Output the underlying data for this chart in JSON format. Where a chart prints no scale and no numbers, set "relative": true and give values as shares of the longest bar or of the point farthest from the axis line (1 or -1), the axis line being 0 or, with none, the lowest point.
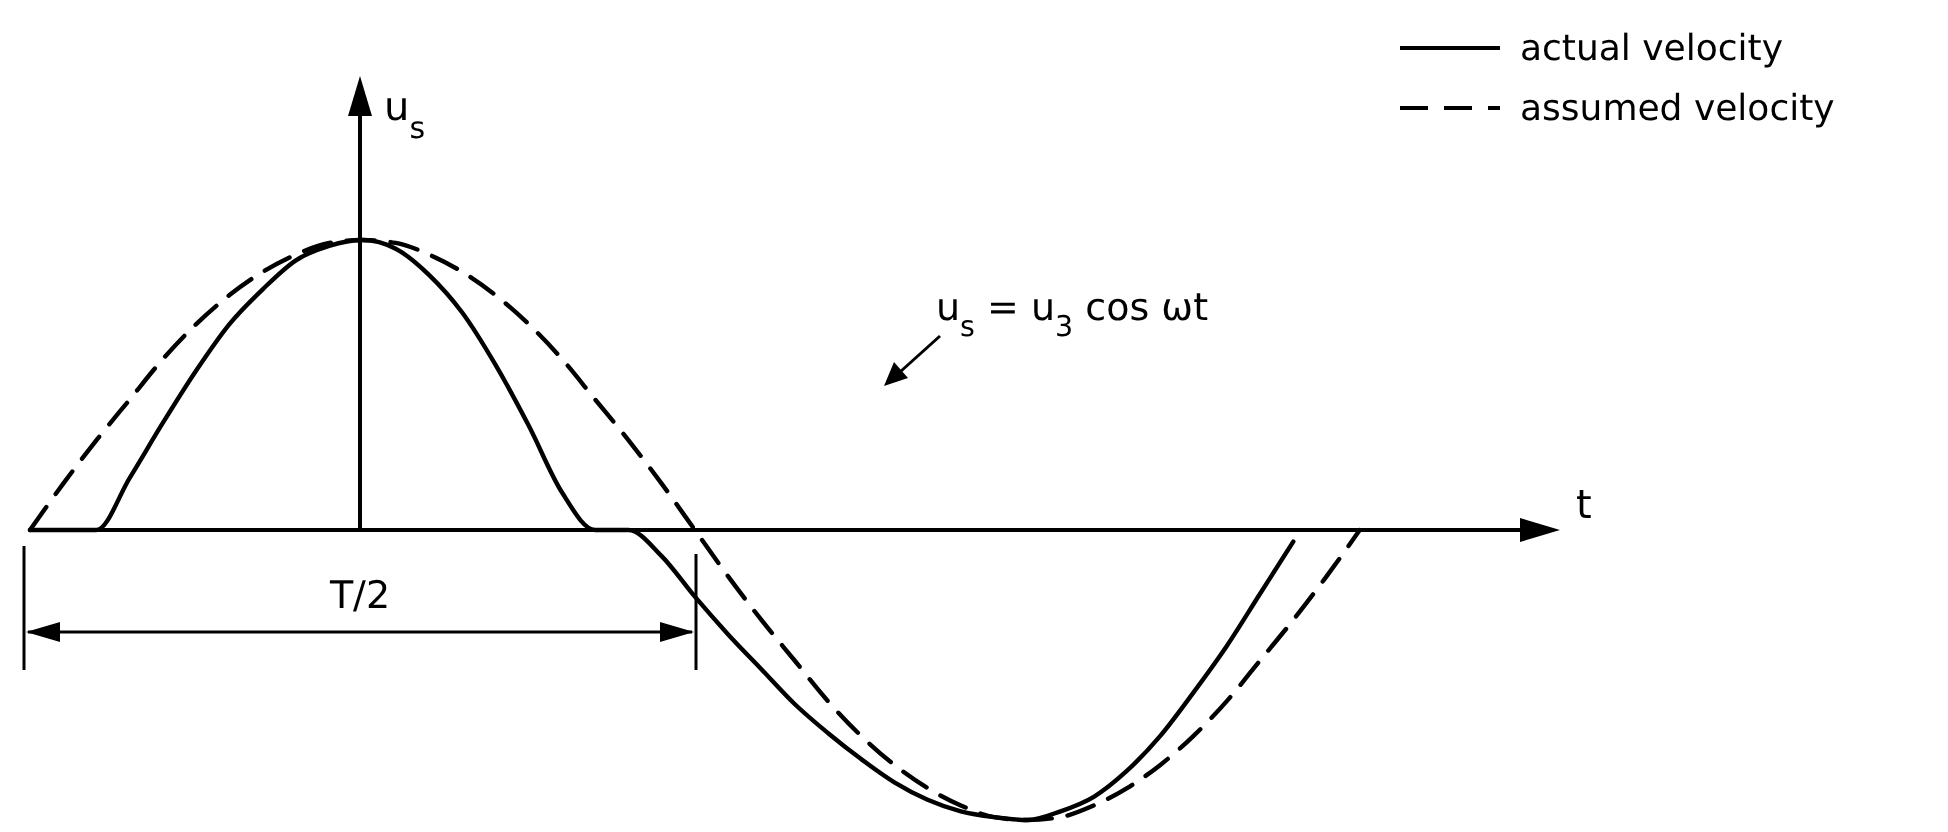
{
  "chart_data": {
    "type": "line",
    "relative": true,
    "xlabel": "t",
    "ylabel": "u$_{s}$",
    "legend": "top right",
    "categories": [
      null,
      null,
      null,
      null,
      null,
      null,
      null,
      null,
      null,
      null,
      null,
      null,
      null,
      null,
      null,
      null,
      null,
      null,
      null,
      null,
      null,
      null,
      null,
      null,
      null,
      null,
      null,
      null,
      null,
      null,
      null,
      null,
      null,
      null,
      null,
      null,
      null,
      null,
      null,
      null,
      null,
      null,
      null,
      null,
      null,
      null
    ],
    "series": [
      {
        "name": "actual velocity",
        "color": "#000000",
        "line_style": "solid",
        "values": [
          0,
          0,
          0,
          0.18,
          0.37,
          0.55,
          0.71,
          0.83,
          0.93,
          0.98,
          1,
          0.97,
          0.88,
          0.75,
          0.57,
          0.36,
          0.13,
          0,
          0,
          -0.09,
          -0.23,
          -0.36,
          -0.48,
          -0.6,
          -0.7,
          -0.79,
          -0.87,
          -0.93,
          -0.97,
          -0.99,
          -1,
          -0.97,
          -0.92,
          -0.83,
          -0.71,
          -0.56,
          -0.4,
          -0.22,
          -0.04,
          null,
          null,
          null,
          null,
          null,
          null,
          null
        ]
      },
      {
        "name": "assumed velocity",
        "color": "#000000",
        "line_style": "dashed",
        "values": [
          0,
          0.16,
          0.31,
          0.45,
          0.59,
          0.71,
          0.81,
          0.89,
          0.95,
          0.99,
          1,
          0.99,
          0.95,
          0.89,
          0.81,
          0.71,
          0.59,
          0.45,
          0.31,
          0.16,
          0,
          -0.16,
          -0.31,
          -0.45,
          -0.59,
          -0.71,
          -0.81,
          -0.89,
          -0.95,
          -0.99,
          -1,
          -0.99,
          -0.95,
          -0.89,
          -0.81,
          -0.71,
          -0.59,
          -0.45,
          -0.31,
          -0.16,
          0,
          null,
          null,
          null,
          null,
          null
        ]
      }
    ],
    "annotations": [
      "u$_{s}$ = u$_{3}$ cos ωt",
      "T/2"
    ]
  }
}
